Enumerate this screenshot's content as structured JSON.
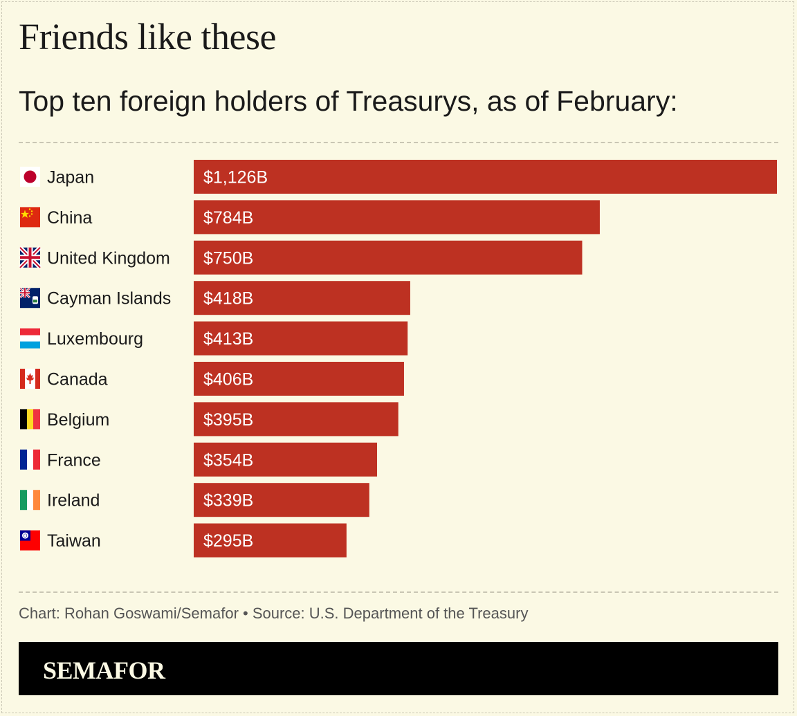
{
  "title": "Friends like these",
  "subtitle": "Top ten foreign holders of Treasurys, as of February:",
  "credit": "Chart: Rohan Goswami/Semafor • Source: U.S. Department of the Treasury",
  "logo": "SEMAFOR",
  "colors": {
    "background": "#fbf9e4",
    "bar": "#bd3122",
    "footer": "#000000"
  },
  "chart_data": {
    "type": "bar",
    "orientation": "horizontal",
    "unit": "$B",
    "categories": [
      "Japan",
      "China",
      "United Kingdom",
      "Cayman Islands",
      "Luxembourg",
      "Canada",
      "Belgium",
      "France",
      "Ireland",
      "Taiwan"
    ],
    "values": [
      1126,
      784,
      750,
      418,
      413,
      406,
      395,
      354,
      339,
      295
    ],
    "data_labels": [
      "$1,126B",
      "$784B",
      "$750B",
      "$418B",
      "$413B",
      "$406B",
      "$395B",
      "$354B",
      "$339B",
      "$295B"
    ],
    "flags": [
      "japan-flag-icon",
      "china-flag-icon",
      "uk-flag-icon",
      "cayman-flag-icon",
      "luxembourg-flag-icon",
      "canada-flag-icon",
      "belgium-flag-icon",
      "france-flag-icon",
      "ireland-flag-icon",
      "taiwan-flag-icon"
    ],
    "xlim": [
      0,
      1126
    ],
    "grid": false,
    "legend": "none"
  }
}
